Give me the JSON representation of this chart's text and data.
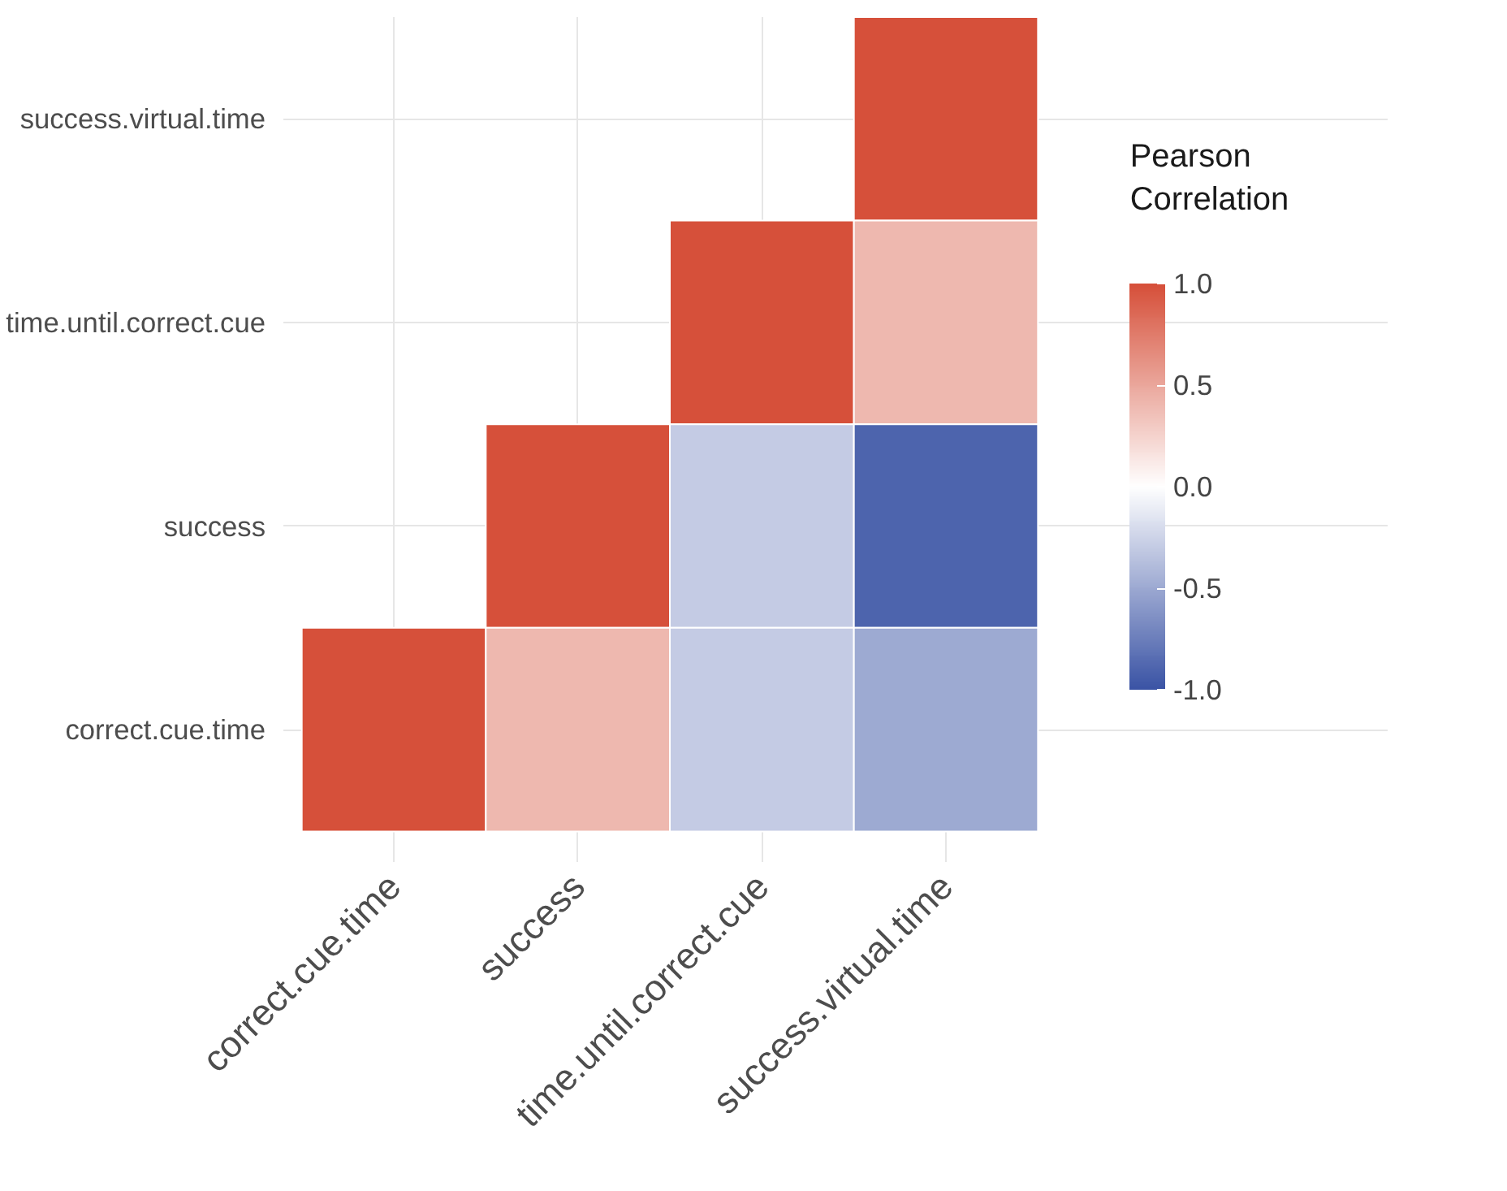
{
  "chart_data": {
    "type": "heatmap",
    "legend_title": "Pearson\nCorrelation",
    "categories": [
      "correct.cue.time",
      "success",
      "time.until.correct.cue",
      "success.virtual.time"
    ],
    "y_categories": [
      "success.virtual.time",
      "time.until.correct.cue",
      "success",
      "correct.cue.time"
    ],
    "cells": [
      [
        null,
        null,
        null,
        1.0
      ],
      [
        null,
        null,
        1.0,
        0.4
      ],
      [
        null,
        1.0,
        -0.3,
        -0.9
      ],
      [
        1.0,
        0.4,
        -0.3,
        -0.5
      ]
    ],
    "colors": [
      "#3b54a5",
      "#ffffff",
      "#d6503a"
    ],
    "clim": [
      -1,
      1
    ],
    "cticks": [
      {
        "value": -1,
        "label": "-1.0"
      },
      {
        "value": -0.5,
        "label": "-0.5"
      },
      {
        "value": 0,
        "label": "0.0"
      },
      {
        "value": 0.5,
        "label": "0.5"
      },
      {
        "value": 1,
        "label": "1.0"
      }
    ],
    "grid": true
  }
}
